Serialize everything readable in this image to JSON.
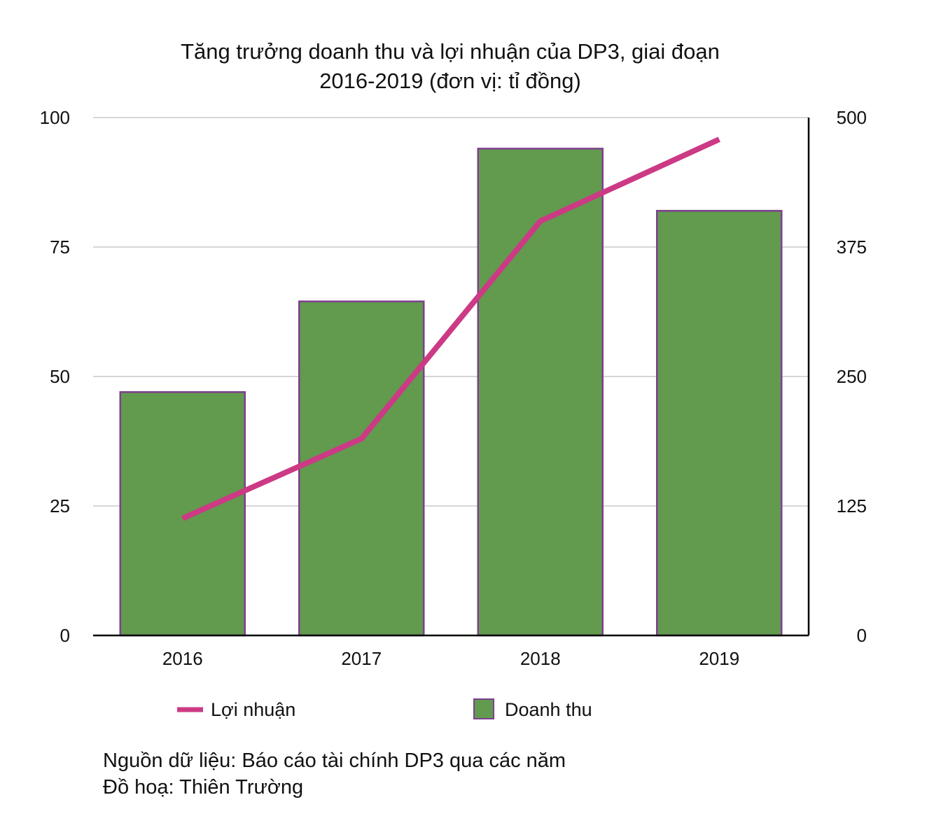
{
  "chart_data": {
    "type": "bar",
    "title_line1": "Tăng trưởng doanh thu và lợi nhuận của DP3, giai đoạn",
    "title_line2": "2016-2019 (đơn vị: tỉ đồng)",
    "categories": [
      "2016",
      "2017",
      "2018",
      "2019"
    ],
    "left_axis": {
      "min": 0,
      "max": 100,
      "ticks": [
        "0",
        "25",
        "50",
        "75",
        "100"
      ]
    },
    "right_axis": {
      "min": 0,
      "max": 500,
      "ticks": [
        "0",
        "125",
        "250",
        "375",
        "500"
      ]
    },
    "series": [
      {
        "name": "Doanh thu",
        "type": "bar",
        "axis": "left",
        "values": [
          47,
          64.5,
          94,
          82
        ],
        "color": "#629a4e",
        "border": "#7e3f8f"
      },
      {
        "name": "Lợi nhuận",
        "type": "line",
        "axis": "right",
        "values": [
          113,
          190,
          400,
          479
        ],
        "color": "#cc3a85"
      }
    ],
    "grid": true,
    "legend": [
      "Lợi nhuận",
      "Doanh thu"
    ],
    "legend_position": "bottom"
  },
  "footer": {
    "source": "Nguồn dữ liệu: Báo cáo tài chính DP3 qua các năm",
    "credit": "Đồ hoạ: Thiên Trường"
  }
}
